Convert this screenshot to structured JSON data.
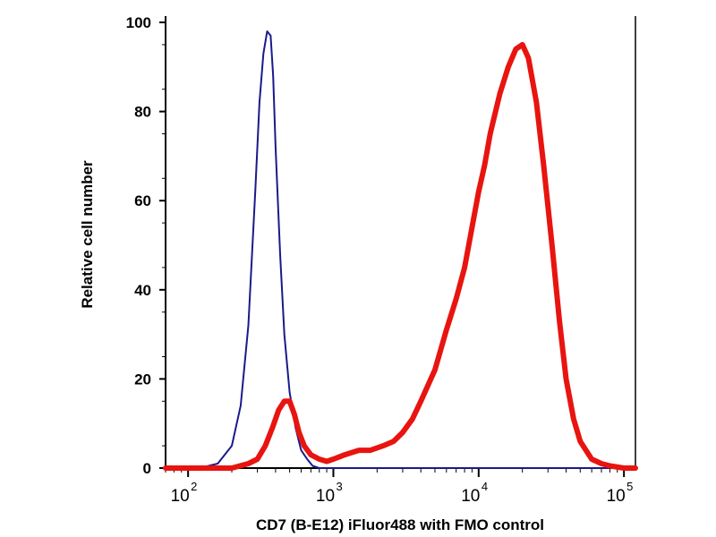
{
  "chart_data": {
    "type": "line",
    "title": "",
    "xlabel": "CD7 (B-E12) iFluor488 with FMO control",
    "ylabel": "Relative cell number",
    "x_scale": "log",
    "xlim": [
      70,
      120000
    ],
    "ylim": [
      0,
      100
    ],
    "x_ticks": [
      {
        "value": 100,
        "base": "10",
        "exp": "2"
      },
      {
        "value": 1000,
        "base": "10",
        "exp": "3"
      },
      {
        "value": 10000,
        "base": "10",
        "exp": "4"
      },
      {
        "value": 100000,
        "base": "10",
        "exp": "5"
      }
    ],
    "y_ticks": [
      0,
      20,
      40,
      60,
      80,
      100
    ],
    "grid": false,
    "legend": "none",
    "series": [
      {
        "color": "#1a1a8c",
        "line_width": 2,
        "x": [
          70,
          120,
          160,
          200,
          230,
          260,
          290,
          310,
          330,
          350,
          370,
          385,
          400,
          430,
          460,
          500,
          550,
          600,
          660,
          720,
          800,
          900,
          1000,
          120000
        ],
        "y": [
          0,
          0,
          1,
          5,
          14,
          32,
          62,
          82,
          93,
          98,
          97,
          88,
          72,
          48,
          30,
          17,
          9,
          4,
          2,
          0.5,
          0,
          0,
          0,
          0
        ]
      },
      {
        "color": "#e8140f",
        "line_width": 6,
        "x": [
          70,
          200,
          260,
          300,
          340,
          380,
          420,
          460,
          500,
          540,
          580,
          630,
          700,
          800,
          900,
          1000,
          1200,
          1500,
          1800,
          2200,
          2600,
          3000,
          3500,
          4000,
          5000,
          6000,
          7000,
          8000,
          9000,
          10000,
          11000,
          12000,
          14000,
          16000,
          18000,
          20000,
          22000,
          25000,
          28000,
          32000,
          36000,
          40000,
          45000,
          50000,
          60000,
          70000,
          80000,
          100000,
          120000
        ],
        "y": [
          0,
          0,
          1,
          2,
          5,
          9,
          13,
          15,
          15,
          12,
          8,
          5,
          3,
          2,
          1.5,
          2,
          3,
          4,
          4,
          5,
          6,
          8,
          11,
          15,
          22,
          31,
          38,
          45,
          54,
          62,
          68,
          75,
          84,
          90,
          94,
          95,
          92,
          82,
          68,
          50,
          33,
          20,
          11,
          6,
          2,
          1,
          0.5,
          0,
          0
        ]
      }
    ]
  }
}
